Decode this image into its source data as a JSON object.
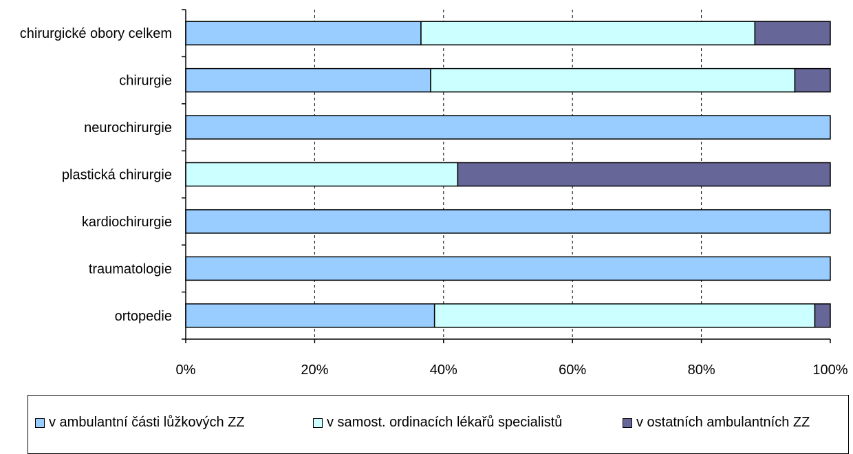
{
  "chart_data": {
    "type": "bar",
    "orientation": "horizontal",
    "stacked": "percent",
    "categories": [
      "chirurgické obory celkem",
      "chirurgie",
      "neurochirurgie",
      "plastická chirurgie",
      "kardiochirurgie",
      "traumatologie",
      "ortopedie"
    ],
    "series": [
      {
        "name": "v ambulantní části lůžkových ZZ",
        "color": "#99ccff",
        "values": [
          36.5,
          38.0,
          100,
          0,
          100,
          100,
          38.6
        ]
      },
      {
        "name": "v samost. ordinacích lékařů specialistů",
        "color": "#ccffff",
        "values": [
          51.8,
          56.5,
          0,
          42.2,
          0,
          0,
          59.0
        ]
      },
      {
        "name": "v ostatních ambulantních ZZ",
        "color": "#666699",
        "values": [
          11.7,
          5.5,
          0,
          57.8,
          0,
          0,
          2.4
        ]
      }
    ],
    "x_ticks": [
      "0%",
      "20%",
      "40%",
      "60%",
      "80%",
      "100%"
    ],
    "xlim": [
      0,
      100
    ],
    "grid": "vertical dashed",
    "legend_position": "bottom"
  }
}
